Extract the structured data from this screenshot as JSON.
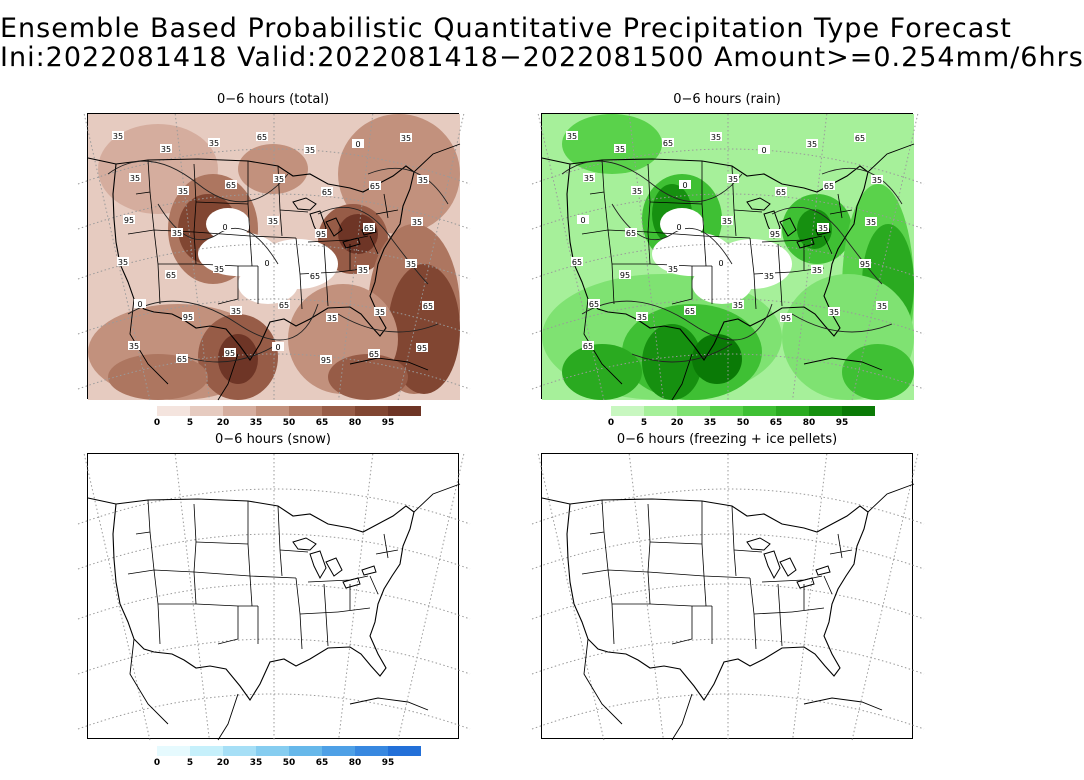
{
  "header": {
    "title_line1": "Ensemble Based Probabilistic Quantitative Precipitation Type Forecast",
    "title_line2": "Ini:2022081418 Valid:2022081418−2022081500 Amount>=0.254mm/6hrs"
  },
  "panels": {
    "total": {
      "title": "0−6 hours (total)"
    },
    "rain": {
      "title": "0−6 hours (rain)"
    },
    "snow": {
      "title": "0−6 hours (snow)"
    },
    "freezing": {
      "title": "0−6 hours (freezing + ice pellets)"
    }
  },
  "colorbars": {
    "tick_labels": [
      "0",
      "5",
      "20",
      "35",
      "50",
      "65",
      "80",
      "95"
    ],
    "brown": [
      "#f4e4de",
      "#e6cbc0",
      "#d5ad9e",
      "#c2917d",
      "#ad7660",
      "#975c47",
      "#814632",
      "#6e3526"
    ],
    "green": [
      "#c8f7c0",
      "#a6f09a",
      "#7fe272",
      "#5ad24b",
      "#3fc034",
      "#2aaa20",
      "#169010",
      "#0a7a06"
    ],
    "blue": [
      "#e6fafe",
      "#c6f0fb",
      "#a6dff6",
      "#86cdf0",
      "#67b8ea",
      "#4ea0e6",
      "#3888e0",
      "#2370d8"
    ]
  },
  "contour_labels": {
    "total": [
      "35",
      "35",
      "35",
      "65",
      "35",
      "0",
      "35",
      "35",
      "35",
      "65",
      "35",
      "65",
      "65",
      "35",
      "95",
      "35",
      "0",
      "35",
      "95",
      "65",
      "35",
      "35",
      "65",
      "35",
      "0",
      "65",
      "35",
      "35",
      "0",
      "95",
      "35",
      "65",
      "35",
      "35",
      "65",
      "35",
      "65",
      "95",
      "0",
      "95",
      "65",
      "95"
    ],
    "rain": [
      "35",
      "35",
      "65",
      "35",
      "0",
      "35",
      "65",
      "35",
      "35",
      "0",
      "35",
      "65",
      "65",
      "35",
      "0",
      "65",
      "0",
      "35",
      "95",
      "35",
      "35",
      "65",
      "95",
      "35",
      "0",
      "35",
      "35",
      "95",
      "65",
      "35",
      "65",
      "35",
      "95",
      "35",
      "35",
      "65"
    ]
  }
}
